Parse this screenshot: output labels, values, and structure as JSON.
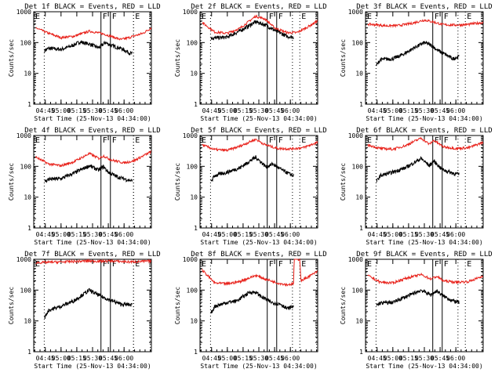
{
  "chart_data": {
    "type": "line",
    "layout": "3x3 grid",
    "yscale": "log",
    "ylim": [
      1,
      1000
    ],
    "yticks": [
      1,
      10,
      100,
      1000
    ],
    "ylabel": "Counts/sec",
    "xlabel": "Start Time (25-Nov-13 04:34:00)",
    "xlim": [
      "04:34",
      "06:26"
    ],
    "xticks": [
      "04:45",
      "05:00",
      "05:15",
      "05:30",
      "05:45",
      "06:00"
    ],
    "colors": {
      "events": "#000000",
      "lld": "#e8221b"
    },
    "panels": [
      {
        "title": "Det 1f BLACK = Events, RED = LLD",
        "events_start": "04:44",
        "events_end": "06:09",
        "events": [
          [
            4.74,
            55
          ],
          [
            4.8,
            65
          ],
          [
            5.0,
            60
          ],
          [
            5.15,
            75
          ],
          [
            5.3,
            105
          ],
          [
            5.45,
            90
          ],
          [
            5.6,
            68
          ],
          [
            5.7,
            100
          ],
          [
            5.8,
            80
          ],
          [
            5.95,
            65
          ],
          [
            6.1,
            45
          ],
          [
            6.13,
            45
          ]
        ],
        "lld": [
          [
            4.6,
            300
          ],
          [
            4.8,
            200
          ],
          [
            5.0,
            145
          ],
          [
            5.2,
            160
          ],
          [
            5.45,
            235
          ],
          [
            5.55,
            215
          ],
          [
            5.7,
            185
          ],
          [
            5.95,
            125
          ],
          [
            6.05,
            140
          ],
          [
            6.3,
            200
          ],
          [
            6.43,
            300
          ]
        ],
        "markers": {
          "E": [
            "04:34",
            "06:09"
          ],
          "F": [
            "05:38",
            "05:47"
          ]
        }
      },
      {
        "title": "Det 2f BLACK = Events, RED = LLD",
        "events_start": "04:44",
        "events_end": "06:02",
        "events": [
          [
            4.74,
            140
          ],
          [
            5.0,
            150
          ],
          [
            5.2,
            240
          ],
          [
            5.45,
            470
          ],
          [
            5.6,
            380
          ],
          [
            5.75,
            250
          ],
          [
            5.95,
            160
          ],
          [
            6.05,
            150
          ]
        ],
        "lld": [
          [
            4.6,
            450
          ],
          [
            4.8,
            220
          ],
          [
            5.0,
            200
          ],
          [
            5.2,
            290
          ],
          [
            5.45,
            720
          ],
          [
            5.6,
            580
          ],
          [
            5.75,
            300
          ],
          [
            5.95,
            210
          ],
          [
            6.1,
            210
          ],
          [
            6.25,
            300
          ],
          [
            6.43,
            500
          ]
        ],
        "markers": {
          "E": [
            "04:34",
            "06:09"
          ],
          "F": [
            "05:38",
            "05:47"
          ]
        }
      },
      {
        "title": "Det 3f BLACK = Events, RED = LLD",
        "events_start": "04:44",
        "events_end": "06:02",
        "events": [
          [
            4.74,
            18
          ],
          [
            4.8,
            28
          ],
          [
            5.0,
            30
          ],
          [
            5.15,
            40
          ],
          [
            5.35,
            70
          ],
          [
            5.5,
            100
          ],
          [
            5.62,
            80
          ],
          [
            5.7,
            58
          ],
          [
            5.8,
            45
          ],
          [
            5.95,
            30
          ],
          [
            6.05,
            35
          ]
        ],
        "lld": [
          [
            4.6,
            400
          ],
          [
            4.9,
            350
          ],
          [
            5.1,
            360
          ],
          [
            5.3,
            420
          ],
          [
            5.5,
            540
          ],
          [
            5.62,
            480
          ],
          [
            5.8,
            380
          ],
          [
            6.0,
            370
          ],
          [
            6.2,
            390
          ],
          [
            6.43,
            450
          ]
        ],
        "markers": {
          "E": [
            "04:34",
            "06:09"
          ],
          "F": [
            "05:38",
            "05:47"
          ]
        }
      },
      {
        "title": "Det 4f BLACK = Events, RED = LLD",
        "events_start": "04:44",
        "events_end": "06:09",
        "events": [
          [
            4.74,
            32
          ],
          [
            4.8,
            38
          ],
          [
            5.0,
            40
          ],
          [
            5.2,
            60
          ],
          [
            5.45,
            105
          ],
          [
            5.6,
            75
          ],
          [
            5.67,
            100
          ],
          [
            5.75,
            65
          ],
          [
            5.9,
            45
          ],
          [
            6.1,
            35
          ],
          [
            6.13,
            33
          ]
        ],
        "lld": [
          [
            4.6,
            200
          ],
          [
            4.8,
            120
          ],
          [
            5.0,
            105
          ],
          [
            5.2,
            140
          ],
          [
            5.45,
            260
          ],
          [
            5.6,
            180
          ],
          [
            5.67,
            220
          ],
          [
            5.8,
            160
          ],
          [
            6.0,
            130
          ],
          [
            6.15,
            150
          ],
          [
            6.43,
            300
          ]
        ],
        "markers": {
          "E": [
            "04:34",
            "06:09"
          ],
          "F": [
            "05:38",
            "05:47"
          ]
        }
      },
      {
        "title": "Det 5f BLACK = Events, RED = LLD",
        "events_start": "04:44",
        "events_end": "06:02",
        "events": [
          [
            4.74,
            32
          ],
          [
            4.8,
            50
          ],
          [
            5.0,
            65
          ],
          [
            5.2,
            90
          ],
          [
            5.45,
            200
          ],
          [
            5.62,
            95
          ],
          [
            5.72,
            120
          ],
          [
            5.85,
            80
          ],
          [
            6.0,
            55
          ],
          [
            6.05,
            50
          ]
        ],
        "lld": [
          [
            4.6,
            500
          ],
          [
            4.8,
            350
          ],
          [
            5.0,
            330
          ],
          [
            5.2,
            450
          ],
          [
            5.45,
            760
          ],
          [
            5.6,
            500
          ],
          [
            5.8,
            380
          ],
          [
            6.0,
            370
          ],
          [
            6.2,
            400
          ],
          [
            6.43,
            600
          ]
        ],
        "markers": {
          "E": [
            "04:34",
            "06:09"
          ],
          "F": [
            "05:38",
            "05:47"
          ]
        }
      },
      {
        "title": "Det 6f BLACK = Events, RED = LLD",
        "events_start": "04:44",
        "events_end": "06:02",
        "events": [
          [
            4.74,
            32
          ],
          [
            4.8,
            50
          ],
          [
            5.0,
            65
          ],
          [
            5.2,
            90
          ],
          [
            5.45,
            180
          ],
          [
            5.58,
            105
          ],
          [
            5.65,
            150
          ],
          [
            5.78,
            80
          ],
          [
            5.95,
            60
          ],
          [
            6.05,
            55
          ]
        ],
        "lld": [
          [
            4.6,
            500
          ],
          [
            4.8,
            380
          ],
          [
            5.0,
            360
          ],
          [
            5.2,
            470
          ],
          [
            5.45,
            830
          ],
          [
            5.58,
            520
          ],
          [
            5.65,
            700
          ],
          [
            5.8,
            430
          ],
          [
            6.0,
            380
          ],
          [
            6.2,
            400
          ],
          [
            6.43,
            600
          ]
        ],
        "markers": {
          "E": [
            "04:34",
            "06:09"
          ],
          "F": [
            "05:38",
            "05:47"
          ]
        }
      },
      {
        "title": "Det 7f BLACK = Events, RED = LLD",
        "events_start": "04:44",
        "events_end": "06:09",
        "events": [
          [
            4.74,
            13
          ],
          [
            4.8,
            22
          ],
          [
            5.0,
            30
          ],
          [
            5.2,
            45
          ],
          [
            5.45,
            100
          ],
          [
            5.62,
            65
          ],
          [
            5.75,
            50
          ],
          [
            5.95,
            35
          ],
          [
            6.13,
            33
          ]
        ],
        "lld": [
          [
            4.6,
            780
          ],
          [
            5.0,
            820
          ],
          [
            5.4,
            880
          ],
          [
            5.6,
            870
          ],
          [
            5.8,
            880
          ],
          [
            6.1,
            820
          ],
          [
            6.43,
            880
          ]
        ],
        "markers": {
          "E": [
            "04:34",
            "06:09"
          ],
          "F": [
            "05:38",
            "05:47"
          ]
        }
      },
      {
        "title": "Det 8f BLACK = Events, RED = LLD",
        "events_start": "04:44",
        "events_end": "06:02",
        "events": [
          [
            4.74,
            18
          ],
          [
            4.8,
            30
          ],
          [
            5.0,
            40
          ],
          [
            5.15,
            45
          ],
          [
            5.35,
            85
          ],
          [
            5.45,
            85
          ],
          [
            5.55,
            60
          ],
          [
            5.7,
            40
          ],
          [
            5.85,
            35
          ],
          [
            5.95,
            25
          ],
          [
            6.05,
            30
          ]
        ],
        "lld": [
          [
            4.6,
            450
          ],
          [
            4.8,
            170
          ],
          [
            5.0,
            160
          ],
          [
            5.2,
            190
          ],
          [
            5.45,
            300
          ],
          [
            5.6,
            230
          ],
          [
            5.8,
            170
          ],
          [
            5.95,
            150
          ],
          [
            6.05,
            160
          ],
          [
            6.06,
            1000
          ],
          [
            6.15,
            1000
          ],
          [
            6.17,
            200
          ],
          [
            6.43,
            400
          ]
        ],
        "markers": {
          "E": [
            "04:34",
            "06:09"
          ],
          "F": [
            "05:38",
            "05:47"
          ]
        }
      },
      {
        "title": "Det 9f BLACK = Events, RED = LLD",
        "events_start": "04:44",
        "events_end": "06:02",
        "events": [
          [
            4.74,
            32
          ],
          [
            4.8,
            38
          ],
          [
            5.0,
            40
          ],
          [
            5.2,
            60
          ],
          [
            5.45,
            100
          ],
          [
            5.6,
            70
          ],
          [
            5.7,
            95
          ],
          [
            5.8,
            65
          ],
          [
            5.95,
            45
          ],
          [
            6.05,
            40
          ]
        ],
        "lld": [
          [
            4.6,
            300
          ],
          [
            4.8,
            180
          ],
          [
            5.0,
            170
          ],
          [
            5.2,
            240
          ],
          [
            5.45,
            320
          ],
          [
            5.6,
            230
          ],
          [
            5.7,
            280
          ],
          [
            5.8,
            200
          ],
          [
            6.0,
            180
          ],
          [
            6.2,
            190
          ],
          [
            6.43,
            280
          ]
        ],
        "markers": {
          "E": [
            "04:34",
            "06:09"
          ],
          "F": [
            "05:38",
            "05:47"
          ]
        }
      }
    ]
  }
}
